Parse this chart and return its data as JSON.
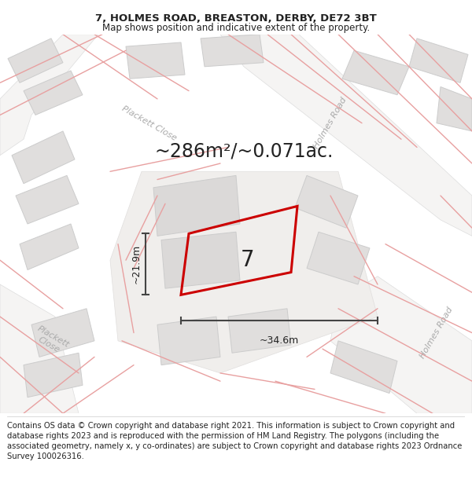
{
  "title": "7, HOLMES ROAD, BREASTON, DERBY, DE72 3BT",
  "subtitle": "Map shows position and indicative extent of the property.",
  "area_label": "~286m²/~0.071ac.",
  "width_label": "~34.6m",
  "height_label": "~21.9m",
  "property_number": "7",
  "footer": "Contains OS data © Crown copyright and database right 2021. This information is subject to Crown copyright and database rights 2023 and is reproduced with the permission of HM Land Registry. The polygons (including the associated geometry, namely x, y co-ordinates) are subject to Crown copyright and database rights 2023 Ordnance Survey 100026316.",
  "bg_color": "#ffffff",
  "map_bg": "#f2f0ef",
  "building_fill": "#e0dedd",
  "building_edge": "#cccccc",
  "road_fill": "#ffffff",
  "pink_line": "#e8a0a0",
  "red_polygon": "#cc0000",
  "dim_line_color": "#444444",
  "text_color": "#222222",
  "street_label_color": "#aaaaaa",
  "title_fontsize": 9.5,
  "subtitle_fontsize": 8.5,
  "area_fontsize": 17,
  "number_fontsize": 20,
  "dim_fontsize": 9,
  "street_fontsize": 8,
  "footer_fontsize": 7.2
}
